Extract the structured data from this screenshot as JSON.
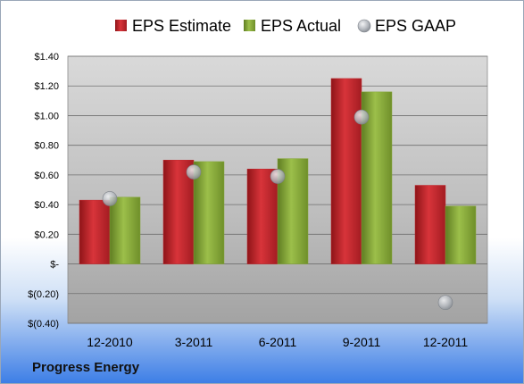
{
  "company": "Progress Energy",
  "chart_data": {
    "type": "bar",
    "categories": [
      "12-2010",
      "3-2011",
      "6-2011",
      "9-2011",
      "12-2011"
    ],
    "series": [
      {
        "name": "EPS Estimate",
        "kind": "bar",
        "color": "#c0262c",
        "values": [
          0.43,
          0.7,
          0.64,
          1.25,
          0.53
        ]
      },
      {
        "name": "EPS Actual",
        "kind": "bar",
        "color": "#86a83a",
        "values": [
          0.45,
          0.69,
          0.71,
          1.16,
          0.39
        ]
      },
      {
        "name": "EPS GAAP",
        "kind": "marker",
        "color": "#b8bcc2",
        "values": [
          0.44,
          0.62,
          0.59,
          0.99,
          -0.26
        ]
      }
    ],
    "yticks": [
      {
        "value": 1.4,
        "label": "$1.40"
      },
      {
        "value": 1.2,
        "label": "$1.20"
      },
      {
        "value": 1.0,
        "label": "$1.00"
      },
      {
        "value": 0.8,
        "label": "$0.80"
      },
      {
        "value": 0.6,
        "label": "$0.60"
      },
      {
        "value": 0.4,
        "label": "$0.40"
      },
      {
        "value": 0.2,
        "label": "$0.20"
      },
      {
        "value": 0.0,
        "label": "$-"
      },
      {
        "value": -0.2,
        "label": "$(0.20)"
      },
      {
        "value": -0.4,
        "label": "$(0.40)"
      }
    ],
    "ylim": [
      -0.4,
      1.4
    ],
    "legend_position": "top",
    "grid": true
  }
}
